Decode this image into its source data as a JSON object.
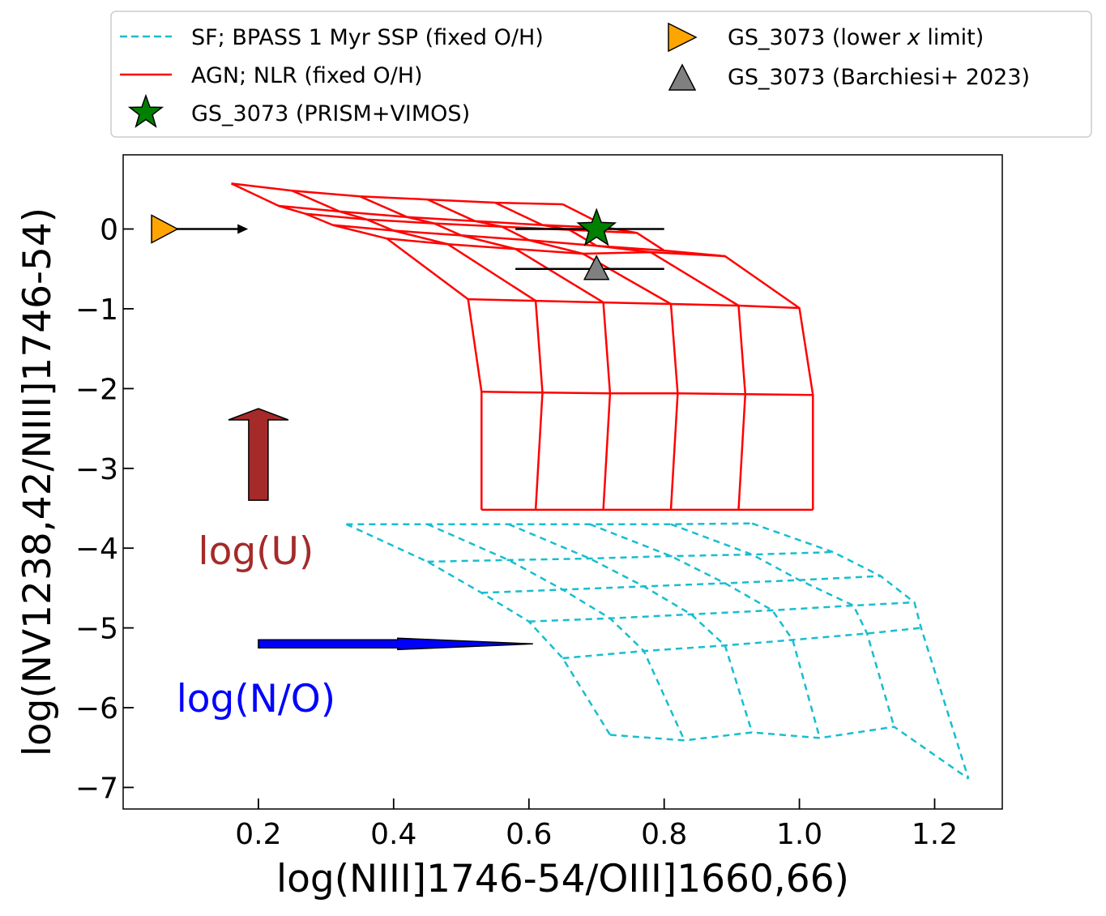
{
  "chart_data": {
    "type": "scatter",
    "title": "",
    "xlabel": "log(NIII]1746-54/OIII]1660,66)",
    "ylabel": "log(NV1238,42/NIII]1746-54)",
    "xlim": [
      0.0,
      1.3
    ],
    "ylim": [
      -7.27,
      0.93
    ],
    "xticks": [
      0.2,
      0.4,
      0.6,
      0.8,
      1.0,
      1.2
    ],
    "xtick_labels": [
      "0.2",
      "0.4",
      "0.6",
      "0.8",
      "1.0",
      "1.2"
    ],
    "yticks": [
      0,
      -1,
      -2,
      -3,
      -4,
      -5,
      -6,
      -7
    ],
    "ytick_labels": [
      "0",
      "−1",
      "−2",
      "−3",
      "−4",
      "−5",
      "−6",
      "−7"
    ],
    "legend": {
      "placement": "above plot",
      "entries": [
        {
          "label": "SF; BPASS 1 Myr SSP (fixed O/H)",
          "marker": "dashed-line",
          "color": "#17becf"
        },
        {
          "label": "AGN; NLR (fixed O/H)",
          "marker": "solid-line",
          "color": "#ff0000"
        },
        {
          "label": "GS_3073 (PRISM+VIMOS)",
          "marker": "star",
          "color": "#008000"
        },
        {
          "label_pre": "GS_3073 (lower ",
          "label_var": "x",
          "label_post": " limit)",
          "marker": "triangle-right",
          "color": "#ffa500"
        },
        {
          "label": "GS_3073 (Barchiesi+ 2023)",
          "marker": "triangle-up",
          "color": "#808080"
        }
      ]
    },
    "series": [
      {
        "name": "AGN; NLR (fixed O/H)",
        "style": "solid",
        "color": "#ff0000",
        "grid_rows": [
          [
            [
              0.16,
              0.57
            ],
            [
              0.25,
              0.48
            ],
            [
              0.35,
              0.41
            ],
            [
              0.45,
              0.37
            ],
            [
              0.55,
              0.33
            ],
            [
              0.65,
              0.31
            ]
          ],
          [
            [
              0.23,
              0.29
            ],
            [
              0.32,
              0.22
            ],
            [
              0.42,
              0.15
            ],
            [
              0.52,
              0.1
            ],
            [
              0.62,
              0.05
            ],
            [
              0.72,
              0.01
            ]
          ],
          [
            [
              0.27,
              0.19
            ],
            [
              0.36,
              0.12
            ],
            [
              0.46,
              0.07
            ],
            [
              0.56,
              0.03
            ],
            [
              0.66,
              -0.01
            ],
            [
              0.76,
              -0.05
            ]
          ],
          [
            [
              0.31,
              0.05
            ],
            [
              0.4,
              -0.02
            ],
            [
              0.5,
              -0.08
            ],
            [
              0.6,
              -0.14
            ],
            [
              0.7,
              -0.21
            ],
            [
              0.8,
              -0.27
            ]
          ],
          [
            [
              0.39,
              -0.12
            ],
            [
              0.48,
              -0.19
            ],
            [
              0.58,
              -0.25
            ],
            [
              0.68,
              -0.31
            ],
            [
              0.78,
              -0.29
            ],
            [
              0.89,
              -0.34
            ]
          ],
          [
            [
              0.51,
              -0.88
            ],
            [
              0.61,
              -0.9
            ],
            [
              0.71,
              -0.92
            ],
            [
              0.81,
              -0.94
            ],
            [
              0.91,
              -0.96
            ],
            [
              1.0,
              -0.99
            ]
          ],
          [
            [
              0.53,
              -2.04
            ],
            [
              0.62,
              -2.05
            ],
            [
              0.72,
              -2.06
            ],
            [
              0.82,
              -2.06
            ],
            [
              0.92,
              -2.07
            ],
            [
              1.02,
              -2.08
            ]
          ],
          [
            [
              0.53,
              -3.52
            ],
            [
              0.61,
              -3.52
            ],
            [
              0.71,
              -3.52
            ],
            [
              0.81,
              -3.52
            ],
            [
              0.91,
              -3.52
            ],
            [
              1.02,
              -3.52
            ]
          ]
        ]
      },
      {
        "name": "SF; BPASS 1 Myr SSP (fixed O/H)",
        "style": "dashed",
        "color": "#17becf",
        "grid_rows": [
          [
            [
              0.33,
              -3.7
            ],
            [
              0.45,
              -3.7
            ],
            [
              0.57,
              -3.7
            ],
            [
              0.69,
              -3.7
            ],
            [
              0.81,
              -3.7
            ],
            [
              0.93,
              -3.69
            ]
          ],
          [
            [
              0.45,
              -4.17
            ],
            [
              0.57,
              -4.15
            ],
            [
              0.69,
              -4.13
            ],
            [
              0.81,
              -4.1
            ],
            [
              0.93,
              -4.08
            ],
            [
              1.05,
              -4.05
            ]
          ],
          [
            [
              0.53,
              -4.56
            ],
            [
              0.65,
              -4.52
            ],
            [
              0.77,
              -4.48
            ],
            [
              0.89,
              -4.44
            ],
            [
              1.0,
              -4.4
            ],
            [
              1.12,
              -4.35
            ]
          ],
          [
            [
              0.6,
              -4.92
            ],
            [
              0.72,
              -4.88
            ],
            [
              0.84,
              -4.83
            ],
            [
              0.96,
              -4.78
            ],
            [
              1.08,
              -4.72
            ],
            [
              1.17,
              -4.68
            ]
          ],
          [
            [
              0.65,
              -5.38
            ],
            [
              0.77,
              -5.29
            ],
            [
              0.89,
              -5.22
            ],
            [
              0.99,
              -5.15
            ],
            [
              1.1,
              -5.07
            ],
            [
              1.18,
              -5.0
            ]
          ],
          [
            [
              0.72,
              -6.34
            ],
            [
              0.83,
              -6.41
            ],
            [
              0.93,
              -6.31
            ],
            [
              1.03,
              -6.38
            ],
            [
              1.14,
              -6.24
            ],
            [
              1.25,
              -6.89
            ]
          ]
        ]
      }
    ],
    "points": [
      {
        "name": "GS_3073 (PRISM+VIMOS)",
        "marker": "star",
        "color": "#008000",
        "x": 0.7,
        "y": 0.0,
        "xerr": [
          0.12,
          0.1
        ]
      },
      {
        "name": "GS_3073 (Barchiesi+ 2023)",
        "marker": "triangle-up",
        "color": "#808080",
        "x": 0.7,
        "y": -0.5,
        "xerr": [
          0.12,
          0.1
        ]
      },
      {
        "name": "GS_3073 (lower x limit)",
        "marker": "triangle-right",
        "color": "#ffa500",
        "x": 0.06,
        "y": 0.0,
        "arrow_to_x": 0.18
      }
    ],
    "annotations": [
      {
        "text": "log(U)",
        "color": "#a52a2a",
        "x": 0.2,
        "y": -4.2,
        "arrow": {
          "x": 0.2,
          "y0": -3.4,
          "y1": -2.25,
          "direction": "up"
        }
      },
      {
        "text": "log(N/O)",
        "color": "#0000ff",
        "x": 0.2,
        "y": -6.05,
        "arrow": {
          "y": -5.2,
          "x0": 0.2,
          "x1": 0.6,
          "direction": "right"
        }
      }
    ]
  }
}
